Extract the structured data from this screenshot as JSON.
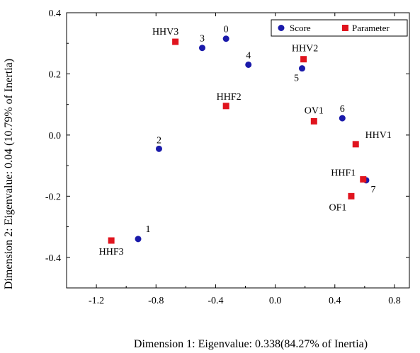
{
  "chart_data": {
    "type": "scatter",
    "xlabel": "Dimension 1: Eigenvalue: 0.338(84.27% of Inertia)",
    "ylabel": "Dimension 2: Eigenvalue: 0.04 (10.79% of Inertia)",
    "xlim": [
      -1.4,
      0.9
    ],
    "ylim": [
      -0.5,
      0.4
    ],
    "xticks": [
      -1.2,
      -0.8,
      -0.4,
      0.0,
      0.4,
      0.8
    ],
    "xtick_labels": [
      "-1.2",
      "-0.8",
      "-0.4",
      "0.0",
      "0.4",
      "0.8"
    ],
    "yticks": [
      -0.4,
      -0.2,
      0.0,
      0.2,
      0.4
    ],
    "ytick_labels": [
      "-0.4",
      "-0.2",
      "0.0",
      "0.2",
      "0.4"
    ],
    "grid": false,
    "legend_position": "top-right",
    "colors": {
      "score": "#1a1aaa",
      "parameter": "#e0141e"
    },
    "series": [
      {
        "name": "Score",
        "marker": "circle",
        "points": [
          {
            "label": "0",
            "x": -0.33,
            "y": 0.315
          },
          {
            "label": "1",
            "x": -0.92,
            "y": -0.34
          },
          {
            "label": "2",
            "x": -0.78,
            "y": -0.045
          },
          {
            "label": "3",
            "x": -0.49,
            "y": 0.285
          },
          {
            "label": "4",
            "x": -0.18,
            "y": 0.23
          },
          {
            "label": "5",
            "x": 0.18,
            "y": 0.218
          },
          {
            "label": "6",
            "x": 0.45,
            "y": 0.055
          },
          {
            "label": "7",
            "x": 0.61,
            "y": -0.148
          }
        ]
      },
      {
        "name": "Parameter",
        "marker": "square",
        "points": [
          {
            "label": "HHV3",
            "x": -0.67,
            "y": 0.305
          },
          {
            "label": "HHF2",
            "x": -0.33,
            "y": 0.095
          },
          {
            "label": "HHV2",
            "x": 0.19,
            "y": 0.248
          },
          {
            "label": "OV1",
            "x": 0.26,
            "y": 0.045
          },
          {
            "label": "HHV1",
            "x": 0.54,
            "y": -0.03
          },
          {
            "label": "HHF1",
            "x": 0.59,
            "y": -0.145
          },
          {
            "label": "OF1",
            "x": 0.51,
            "y": -0.2
          },
          {
            "label": "HHF3",
            "x": -1.1,
            "y": -0.345
          }
        ]
      }
    ]
  }
}
